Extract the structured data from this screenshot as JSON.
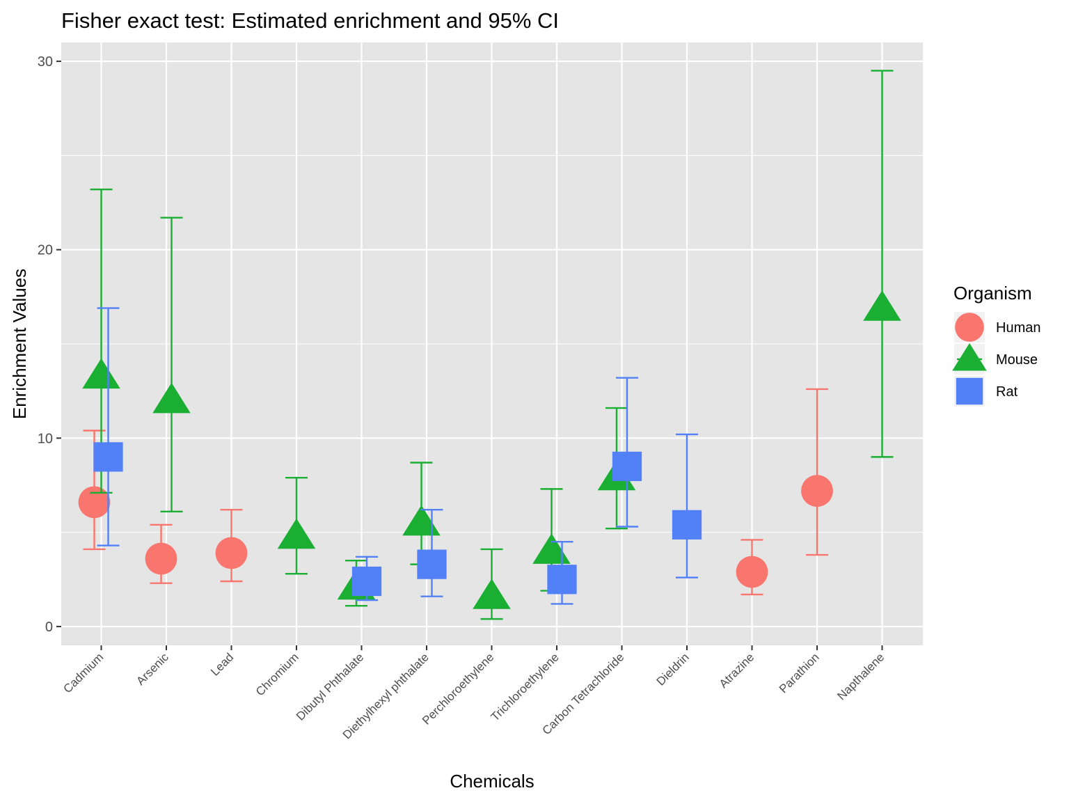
{
  "chart_data": {
    "type": "scatter",
    "title": "Fisher exact test: Estimated enrichment and 95% CI",
    "xlabel": "Chemicals",
    "ylabel": "Enrichment Values",
    "ylim": [
      -1,
      31
    ],
    "yticks": [
      0,
      10,
      20,
      30
    ],
    "grid": true,
    "legend_title": "Organism",
    "legend_position": "right",
    "categories": [
      "Cadmium",
      "Arsenic",
      "Lead",
      "Chromium",
      "Dibutyl Phthalate",
      "Diethylhexyl phthalate",
      "Perchloroethylene",
      "Trichloroethylene",
      "Carbon Tetrachloride",
      "Dieldrin",
      "Atrazine",
      "Parathion",
      "Napthalene"
    ],
    "series": [
      {
        "name": "Human",
        "color": "#F8766D",
        "shape": "circle",
        "points": [
          {
            "category": "Cadmium",
            "value": 6.6,
            "lower": 4.1,
            "upper": 10.4
          },
          {
            "category": "Arsenic",
            "value": 3.6,
            "lower": 2.3,
            "upper": 5.4
          },
          {
            "category": "Lead",
            "value": 3.9,
            "lower": 2.4,
            "upper": 6.2
          },
          {
            "category": "Atrazine",
            "value": 2.9,
            "lower": 1.7,
            "upper": 4.6
          },
          {
            "category": "Parathion",
            "value": 7.2,
            "lower": 3.8,
            "upper": 12.6
          }
        ]
      },
      {
        "name": "Mouse",
        "color": "#1AAE32",
        "shape": "triangle",
        "points": [
          {
            "category": "Cadmium",
            "value": 13.3,
            "lower": 7.1,
            "upper": 23.2
          },
          {
            "category": "Arsenic",
            "value": 12.0,
            "lower": 6.1,
            "upper": 21.7
          },
          {
            "category": "Chromium",
            "value": 4.8,
            "lower": 2.8,
            "upper": 7.9
          },
          {
            "category": "Dibutyl Phthalate",
            "value": 2.1,
            "lower": 1.1,
            "upper": 3.5
          },
          {
            "category": "Diethylhexyl phthalate",
            "value": 5.5,
            "lower": 3.3,
            "upper": 8.7
          },
          {
            "category": "Perchloroethylene",
            "value": 1.6,
            "lower": 0.4,
            "upper": 4.1
          },
          {
            "category": "Trichloroethylene",
            "value": 4.0,
            "lower": 1.9,
            "upper": 7.3
          },
          {
            "category": "Carbon Tetrachloride",
            "value": 7.9,
            "lower": 5.2,
            "upper": 11.6
          },
          {
            "category": "Napthalene",
            "value": 16.9,
            "lower": 9.0,
            "upper": 29.5
          }
        ]
      },
      {
        "name": "Rat",
        "color": "#5281F7",
        "shape": "square",
        "points": [
          {
            "category": "Cadmium",
            "value": 9.0,
            "lower": 4.3,
            "upper": 16.9
          },
          {
            "category": "Dibutyl Phthalate",
            "value": 2.4,
            "lower": 1.4,
            "upper": 3.7
          },
          {
            "category": "Diethylhexyl phthalate",
            "value": 3.3,
            "lower": 1.6,
            "upper": 6.2
          },
          {
            "category": "Trichloroethylene",
            "value": 2.5,
            "lower": 1.2,
            "upper": 4.5
          },
          {
            "category": "Carbon Tetrachloride",
            "value": 8.5,
            "lower": 5.3,
            "upper": 13.2
          },
          {
            "category": "Dieldrin",
            "value": 5.4,
            "lower": 2.6,
            "upper": 10.2
          }
        ]
      }
    ]
  }
}
